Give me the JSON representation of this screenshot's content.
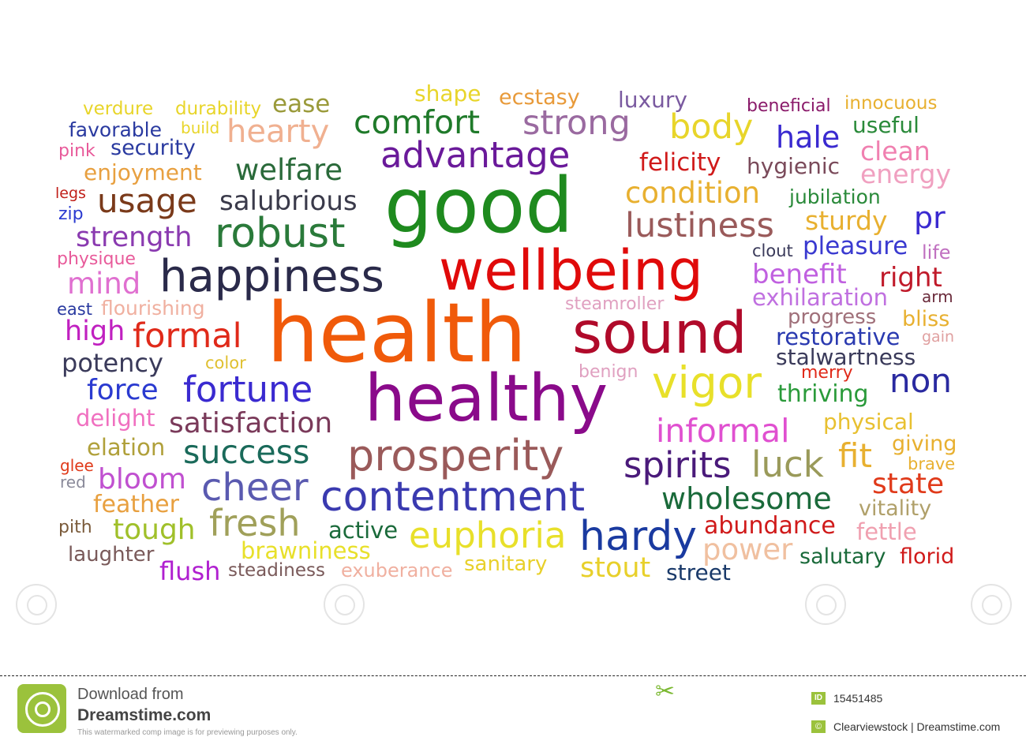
{
  "words": [
    {
      "text": "verdure",
      "color": "#e8d52a"
    },
    {
      "text": "durability",
      "color": "#e8d52a"
    },
    {
      "text": "ease",
      "color": "#9a9a3a"
    },
    {
      "text": "shape",
      "color": "#e8d52a"
    },
    {
      "text": "ecstasy",
      "color": "#e89a3a"
    },
    {
      "text": "luxury",
      "color": "#7a5aa0"
    },
    {
      "text": "beneficial",
      "color": "#8a1a6a"
    },
    {
      "text": "innocuous",
      "color": "#e8b030"
    },
    {
      "text": "favorable",
      "color": "#2a3aa0"
    },
    {
      "text": "build",
      "color": "#e8d52a"
    },
    {
      "text": "hearty",
      "color": "#f0b090"
    },
    {
      "text": "comfort",
      "color": "#1f7a2a"
    },
    {
      "text": "strong",
      "color": "#9a6aa0"
    },
    {
      "text": "body",
      "color": "#e8d52a"
    },
    {
      "text": "hale",
      "color": "#3a2ad0"
    },
    {
      "text": "useful",
      "color": "#2a8a3a"
    },
    {
      "text": "pink",
      "color": "#e85a9a"
    },
    {
      "text": "security",
      "color": "#2a3aa0"
    },
    {
      "text": "clean",
      "color": "#f080b0"
    },
    {
      "text": "advantage",
      "color": "#6a1a9a"
    },
    {
      "text": "felicity",
      "color": "#d01a1a"
    },
    {
      "text": "hygienic",
      "color": "#7a4a5a"
    },
    {
      "text": "enjoyment",
      "color": "#e8a040"
    },
    {
      "text": "welfare",
      "color": "#2a6a3a"
    },
    {
      "text": "energy",
      "color": "#f0a0c0"
    },
    {
      "text": "legs",
      "color": "#c0201a"
    },
    {
      "text": "good",
      "color": "#1e8a1e"
    },
    {
      "text": "condition",
      "color": "#e8b030"
    },
    {
      "text": "jubilation",
      "color": "#2a8a3a"
    },
    {
      "text": "usage",
      "color": "#7a3a1a"
    },
    {
      "text": "salubrious",
      "color": "#3a3a4a"
    },
    {
      "text": "zip",
      "color": "#2a3ad0"
    },
    {
      "text": "sturdy",
      "color": "#e8b030"
    },
    {
      "text": "pr",
      "color": "#3a2ad0"
    },
    {
      "text": "robust",
      "color": "#2a7a3a"
    },
    {
      "text": "lustiness",
      "color": "#9a5a5a"
    },
    {
      "text": "strength",
      "color": "#8a3ab0"
    },
    {
      "text": "clout",
      "color": "#3a3a5a"
    },
    {
      "text": "pleasure",
      "color": "#3a3ad0"
    },
    {
      "text": "life",
      "color": "#c070c0"
    },
    {
      "text": "physique",
      "color": "#e85a9a"
    },
    {
      "text": "wellbeing",
      "color": "#e00a0a"
    },
    {
      "text": "mind",
      "color": "#e070d0"
    },
    {
      "text": "happiness",
      "color": "#2a2a4a"
    },
    {
      "text": "benefit",
      "color": "#c060e0"
    },
    {
      "text": "right",
      "color": "#c01a2a"
    },
    {
      "text": "east",
      "color": "#2a3aa0"
    },
    {
      "text": "flourishing",
      "color": "#f0b0a0"
    },
    {
      "text": "steamroller",
      "color": "#e0a0c0"
    },
    {
      "text": "exhilaration",
      "color": "#c070e0"
    },
    {
      "text": "arm",
      "color": "#6a2a3a"
    },
    {
      "text": "health",
      "color": "#f05a0a"
    },
    {
      "text": "progress",
      "color": "#a0707a"
    },
    {
      "text": "bliss",
      "color": "#e8b030"
    },
    {
      "text": "high",
      "color": "#c020c0"
    },
    {
      "text": "formal",
      "color": "#e02a1a"
    },
    {
      "text": "sound",
      "color": "#b00a2a"
    },
    {
      "text": "restorative",
      "color": "#2a3ab0"
    },
    {
      "text": "gain",
      "color": "#e0a0a0"
    },
    {
      "text": "potency",
      "color": "#3a3a5a"
    },
    {
      "text": "color",
      "color": "#e0c030"
    },
    {
      "text": "stalwartness",
      "color": "#3a3a5a"
    },
    {
      "text": "benign",
      "color": "#e0a0c0"
    },
    {
      "text": "merry",
      "color": "#e02a1a"
    },
    {
      "text": "force",
      "color": "#2a3ad0"
    },
    {
      "text": "fortune",
      "color": "#3a2ad0"
    },
    {
      "text": "vigor",
      "color": "#e8e02a"
    },
    {
      "text": "thriving",
      "color": "#2a9a3a"
    },
    {
      "text": "non",
      "color": "#2a2aa0"
    },
    {
      "text": "healthy",
      "color": "#8a0a8a"
    },
    {
      "text": "delight",
      "color": "#f070c0"
    },
    {
      "text": "satisfaction",
      "color": "#7a3a5a"
    },
    {
      "text": "informal",
      "color": "#e050d0"
    },
    {
      "text": "physical",
      "color": "#e8c030"
    },
    {
      "text": "elation",
      "color": "#b0a03a"
    },
    {
      "text": "success",
      "color": "#1a6a5a"
    },
    {
      "text": "giving",
      "color": "#e8b030"
    },
    {
      "text": "glee",
      "color": "#e03a1a"
    },
    {
      "text": "prosperity",
      "color": "#9a5a5a"
    },
    {
      "text": "fit",
      "color": "#e8b030"
    },
    {
      "text": "brave",
      "color": "#e8b030"
    },
    {
      "text": "red",
      "color": "#8a8a9a"
    },
    {
      "text": "bloom",
      "color": "#c050d0"
    },
    {
      "text": "spirits",
      "color": "#4a1a7a"
    },
    {
      "text": "luck",
      "color": "#9a9a5a"
    },
    {
      "text": "state",
      "color": "#e03a1a"
    },
    {
      "text": "cheer",
      "color": "#5a5ab0"
    },
    {
      "text": "feather",
      "color": "#e8a040"
    },
    {
      "text": "contentment",
      "color": "#3a3ab0"
    },
    {
      "text": "wholesome",
      "color": "#1a6a3a"
    },
    {
      "text": "vitality",
      "color": "#b0a06a"
    },
    {
      "text": "pith",
      "color": "#7a5a3a"
    },
    {
      "text": "tough",
      "color": "#a0c02a"
    },
    {
      "text": "fresh",
      "color": "#a0a05a"
    },
    {
      "text": "active",
      "color": "#1a6a3a"
    },
    {
      "text": "abundance",
      "color": "#d01a1a"
    },
    {
      "text": "fettle",
      "color": "#f0a0b0"
    },
    {
      "text": "euphoria",
      "color": "#e8e02a"
    },
    {
      "text": "hardy",
      "color": "#1a3aa0"
    },
    {
      "text": "laughter",
      "color": "#7a5a5a"
    },
    {
      "text": "brawniness",
      "color": "#e8e02a"
    },
    {
      "text": "power",
      "color": "#f0c0a0"
    },
    {
      "text": "salutary",
      "color": "#1a6a3a"
    },
    {
      "text": "florid",
      "color": "#d01a1a"
    },
    {
      "text": "flush",
      "color": "#b020d0"
    },
    {
      "text": "steadiness",
      "color": "#7a5a5a"
    },
    {
      "text": "exuberance",
      "color": "#f0b0a0"
    },
    {
      "text": "sanitary",
      "color": "#e8d02a"
    },
    {
      "text": "stout",
      "color": "#e8d02a"
    },
    {
      "text": "street",
      "color": "#1a3a6a"
    }
  ],
  "footer": {
    "download_from": "Download from",
    "site": "Dreamstime.com",
    "notice": "This watermarked comp image is for previewing purposes only.",
    "id_label": "ID",
    "id_value": "15451485",
    "copyright_symbol": "©",
    "credit": "Clearviewstock | Dreamstime.com",
    "logo_icon": "dreamstime-spiral-logo-icon",
    "scissors_icon": "scissors-icon"
  }
}
